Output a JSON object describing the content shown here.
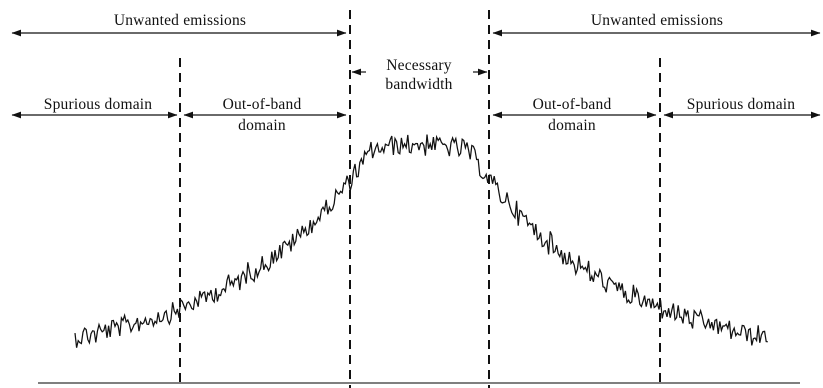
{
  "diagram": {
    "labels": {
      "unwanted_left": "Unwanted emissions",
      "unwanted_right": "Unwanted emissions",
      "necessary_line1": "Necessary",
      "necessary_line2": "bandwidth",
      "spurious_left": "Spurious domain",
      "spurious_right": "Spurious domain",
      "oob_left_line1": "Out-of-band",
      "oob_left_line2": "domain",
      "oob_right_line1": "Out-of-band",
      "oob_right_line2": "domain"
    },
    "colors": {
      "ink": "#111111",
      "background": "#ffffff"
    }
  }
}
